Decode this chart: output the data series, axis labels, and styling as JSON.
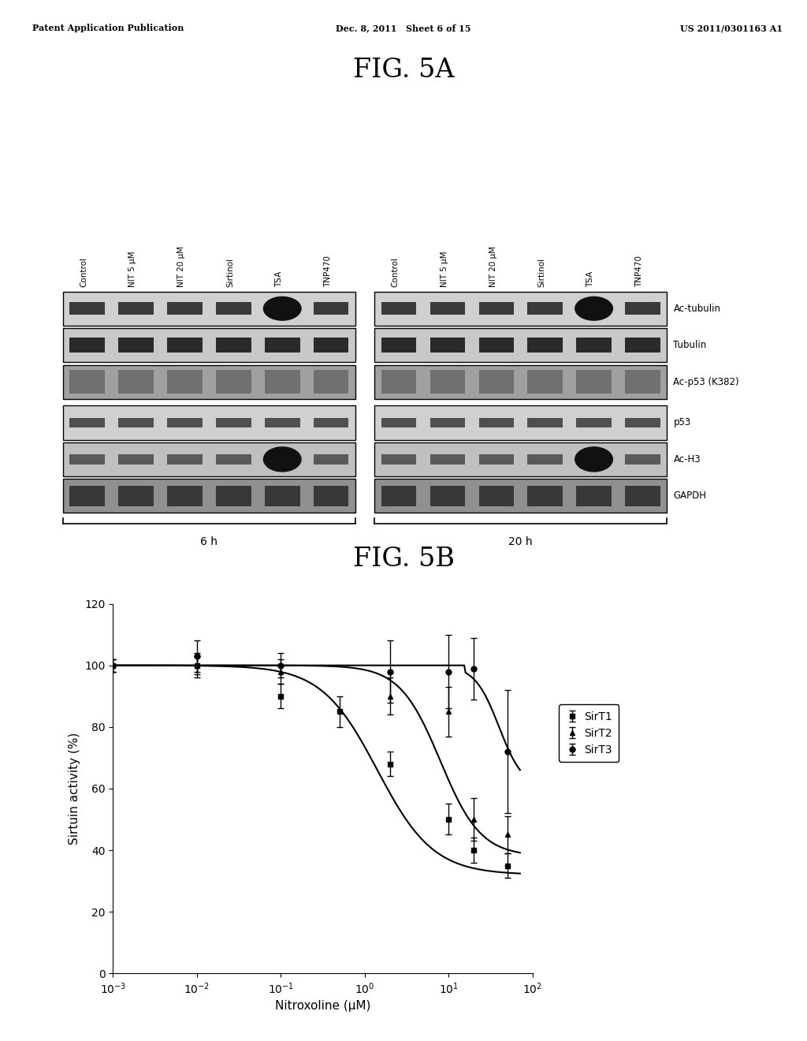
{
  "header_left": "Patent Application Publication",
  "header_mid": "Dec. 8, 2011   Sheet 6 of 15",
  "header_right": "US 2011/0301163 A1",
  "fig5a_title": "FIG. 5A",
  "fig5b_title": "FIG. 5B",
  "col_labels": [
    "Control",
    "NIT 5 μM",
    "NIT 20 μM",
    "Sirtinol",
    "TSA",
    "TNP470"
  ],
  "row_labels": [
    "Ac-tubulin",
    "Tubulin",
    "Ac-p53 (K382)",
    "p53",
    "Ac-H3",
    "GAPDH"
  ],
  "time_labels": [
    "6 h",
    "20 h"
  ],
  "sirt1_x": [
    -3,
    -2,
    -1,
    -0.3,
    0.3,
    1.0,
    1.3,
    1.7
  ],
  "sirt1_y": [
    100,
    100,
    90,
    85,
    68,
    50,
    40,
    35
  ],
  "sirt1_err": [
    2,
    4,
    4,
    5,
    4,
    5,
    4,
    4
  ],
  "sirt2_x": [
    -3,
    -2,
    -1,
    0.3,
    1.0,
    1.3,
    1.7
  ],
  "sirt2_y": [
    100,
    100,
    98,
    90,
    85,
    50,
    45
  ],
  "sirt2_err": [
    2,
    3,
    4,
    6,
    8,
    7,
    6
  ],
  "sirt3_x": [
    -3,
    -2,
    -1,
    0.3,
    1.0,
    1.3,
    1.7
  ],
  "sirt3_y": [
    100,
    103,
    100,
    98,
    98,
    99,
    72
  ],
  "sirt3_err": [
    2,
    5,
    4,
    10,
    12,
    10,
    20
  ],
  "xlabel": "Nitroxoline (μM)",
  "ylabel": "Sirtuin activity (%)",
  "ylim": [
    0,
    120
  ],
  "yticks": [
    0,
    20,
    40,
    60,
    80,
    100,
    120
  ],
  "legend_labels": [
    "SirT1",
    "SirT2",
    "SirT3"
  ],
  "background_color": "#ffffff"
}
